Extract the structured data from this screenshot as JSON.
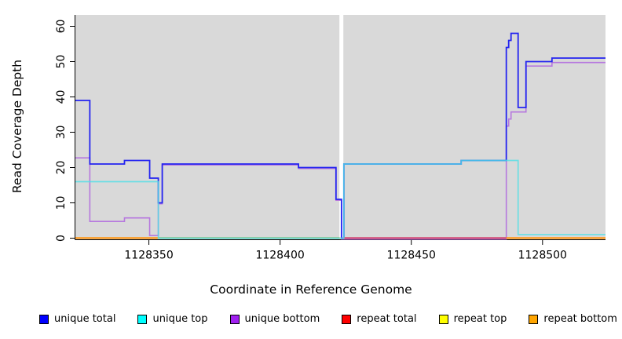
{
  "figure": {
    "xlabel": "Coordinate in Reference Genome",
    "ylabel": "Read Coverage Depth",
    "plot_bg_color": "#d9d9d9",
    "axis_color": "#000000",
    "gap_band": [
      1128422.6,
      1128424.1
    ]
  },
  "chart_data": {
    "type": "line",
    "subtype": "step-coverage",
    "title": "",
    "xlabel": "Coordinate in Reference Genome",
    "ylabel": "Read Coverage Depth",
    "xlim": [
      1128322,
      1128524
    ],
    "ylim": [
      0,
      63
    ],
    "x_ticks": [
      1128350,
      1128400,
      1128450,
      1128500
    ],
    "y_ticks": [
      0,
      10,
      20,
      30,
      40,
      50,
      60
    ],
    "grid": false,
    "legend_position": "bottom",
    "series": [
      {
        "name": "unique total",
        "color": "#2424f0",
        "width": 1.8,
        "points": [
          [
            1128322,
            39
          ],
          [
            1128327.5,
            21
          ],
          [
            1128340.7,
            22
          ],
          [
            1128350.3,
            17
          ],
          [
            1128353.6,
            10
          ],
          [
            1128355.1,
            21
          ],
          [
            1128407,
            20
          ],
          [
            1128421.3,
            11
          ],
          [
            1128423.4,
            0
          ],
          [
            1128424.3,
            21
          ],
          [
            1128469,
            22
          ],
          [
            1128486.2,
            54
          ],
          [
            1128487.1,
            56
          ],
          [
            1128488,
            58
          ],
          [
            1128490.7,
            37
          ],
          [
            1128493.7,
            50
          ],
          [
            1128503.6,
            51
          ]
        ]
      },
      {
        "name": "unique top",
        "color": "#50dfe6",
        "width": 1.7,
        "opacity": 0.8,
        "points": [
          [
            1128322,
            16
          ],
          [
            1128353.6,
            0
          ],
          [
            1128424.3,
            21
          ],
          [
            1128469,
            22
          ],
          [
            1128490.7,
            1
          ]
        ]
      },
      {
        "name": "unique bottom",
        "color": "#b678de",
        "width": 1.6,
        "y_offset": 1.2,
        "points": [
          [
            1128322,
            23
          ],
          [
            1128327.5,
            5
          ],
          [
            1128340.7,
            6
          ],
          [
            1128350.3,
            1
          ],
          [
            1128353.6,
            10
          ],
          [
            1128355.1,
            21
          ],
          [
            1128407,
            20
          ],
          [
            1128421.3,
            11
          ],
          [
            1128423.4,
            0
          ],
          [
            1128486.2,
            32
          ],
          [
            1128487.1,
            34
          ],
          [
            1128488,
            36
          ],
          [
            1128493.7,
            49
          ],
          [
            1128503.6,
            50
          ]
        ]
      },
      {
        "name": "repeat total",
        "color": "#ff0000",
        "width": 1.2,
        "points": [
          [
            1128322,
            0
          ]
        ]
      },
      {
        "name": "repeat top",
        "color": "#ffff00",
        "width": 1.2,
        "points": [
          [
            1128322,
            0
          ]
        ]
      },
      {
        "name": "repeat bottom",
        "color": "#ffa500",
        "width": 1.2,
        "points": [
          [
            1128322,
            0
          ]
        ]
      }
    ],
    "baseline_segments": [
      {
        "from": 1128322,
        "to": 1128422.6,
        "color": "#ff9614",
        "note": "orange"
      },
      {
        "from": 1128353.6,
        "to": 1128422.6,
        "color": "#8cc98c",
        "note": "green"
      },
      {
        "from": 1128424.1,
        "to": 1128486.2,
        "color": "#d14a72",
        "note": "crimson"
      },
      {
        "from": 1128486.2,
        "to": 1128524,
        "color": "#ff9614",
        "note": "orange"
      }
    ],
    "legend": [
      {
        "label": "unique total",
        "color": "#0000ff"
      },
      {
        "label": "unique top",
        "color": "#00ffff"
      },
      {
        "label": "unique bottom",
        "color": "#a020f0"
      },
      {
        "label": "repeat total",
        "color": "#ff0000"
      },
      {
        "label": "repeat top",
        "color": "#ffff00"
      },
      {
        "label": "repeat bottom",
        "color": "#ffa500"
      }
    ]
  }
}
